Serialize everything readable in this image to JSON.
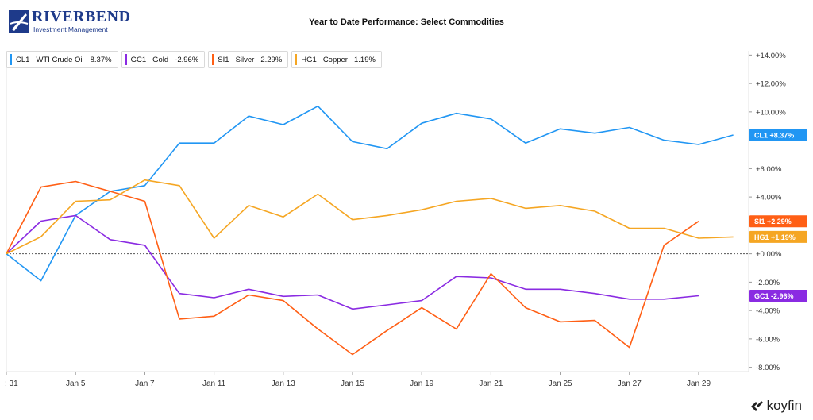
{
  "logo": {
    "name": "RIVERBEND",
    "subtitle": "Investment Management"
  },
  "title": "Year to Date Performance: Select Commodities",
  "brand": {
    "name": "koyfin"
  },
  "legend": [
    {
      "code": "CL1",
      "name": "WTI Crude Oil",
      "value": "8.37%",
      "color": "#2196f3"
    },
    {
      "code": "GC1",
      "name": "Gold",
      "value": "-2.96%",
      "color": "#8a2be2"
    },
    {
      "code": "SI1",
      "name": "Silver",
      "value": "2.29%",
      "color": "#ff5f15"
    },
    {
      "code": "HG1",
      "name": "Copper",
      "value": "1.19%",
      "color": "#f5a623"
    }
  ],
  "chart_data": {
    "type": "line",
    "title": "Year to Date Performance: Select Commodities",
    "x": [
      "Dec 31",
      "Jan 4",
      "Jan 5",
      "Jan 6",
      "Jan 7",
      "Jan 8",
      "Jan 11",
      "Jan 12",
      "Jan 13",
      "Jan 14",
      "Jan 15",
      "Jan 18",
      "Jan 19",
      "Jan 20",
      "Jan 21",
      "Jan 22",
      "Jan 25",
      "Jan 26",
      "Jan 27",
      "Jan 28",
      "Jan 29",
      "Feb 1"
    ],
    "x_tick_labels": [
      ": 31",
      "Jan 5",
      "Jan 7",
      "Jan 11",
      "Jan 13",
      "Jan 15",
      "Jan 19",
      "Jan 21",
      "Jan 25",
      "Jan 27",
      "Jan 29"
    ],
    "x_tick_index": [
      0,
      2,
      4,
      6,
      8,
      10,
      12,
      14,
      16,
      18,
      20
    ],
    "ylim": [
      -8.3,
      14.3
    ],
    "y_ticks": [
      14,
      12,
      10,
      8,
      6,
      4,
      2,
      0,
      -2,
      -4,
      -6,
      -8
    ],
    "y_tick_labels": [
      "+14.00%",
      "+12.00%",
      "+10.00%",
      "",
      "+6.00%",
      "+4.00%",
      "",
      "+0.00%",
      "-2.00%",
      "-4.00%",
      "-6.00%",
      "-8.00%"
    ],
    "zero_line": true,
    "series": [
      {
        "name": "CL1",
        "color": "#2196f3",
        "values": [
          0,
          -1.9,
          2.7,
          4.4,
          4.8,
          7.8,
          7.8,
          9.7,
          9.1,
          10.4,
          7.9,
          7.4,
          9.2,
          9.9,
          9.5,
          7.8,
          8.8,
          8.5,
          8.9,
          8.0,
          7.7,
          8.37
        ]
      },
      {
        "name": "GC1",
        "color": "#8a2be2",
        "values": [
          0,
          2.3,
          2.7,
          1.0,
          0.6,
          -2.8,
          -3.1,
          -2.5,
          -3.0,
          -2.9,
          -3.9,
          -3.6,
          -3.3,
          -1.6,
          -1.7,
          -2.5,
          -2.5,
          -2.8,
          -3.2,
          -3.2,
          -2.96,
          null
        ]
      },
      {
        "name": "SI1",
        "color": "#ff5f15",
        "values": [
          0,
          4.7,
          5.1,
          4.4,
          3.7,
          -4.6,
          -4.4,
          -2.9,
          -3.3,
          -5.3,
          -7.1,
          -5.4,
          -3.8,
          -5.3,
          -1.4,
          -3.8,
          -4.8,
          -4.7,
          -6.6,
          0.6,
          2.29,
          null
        ]
      },
      {
        "name": "HG1",
        "color": "#f5a623",
        "values": [
          0,
          1.2,
          3.7,
          3.8,
          5.2,
          4.8,
          1.1,
          3.4,
          2.6,
          4.2,
          2.4,
          2.7,
          3.1,
          3.7,
          3.9,
          3.2,
          3.4,
          3.0,
          1.8,
          1.8,
          1.1,
          1.19
        ]
      }
    ],
    "end_labels": [
      {
        "code": "CL1",
        "value": "+8.37%",
        "y": 8.37,
        "color": "#2196f3"
      },
      {
        "code": "SI1",
        "value": "+2.29%",
        "y": 2.29,
        "color": "#ff5f15"
      },
      {
        "code": "HG1",
        "value": "+1.19%",
        "y": 1.19,
        "color": "#f5a623"
      },
      {
        "code": "GC1",
        "value": "-2.96%",
        "y": -2.96,
        "color": "#8a2be2"
      }
    ]
  }
}
